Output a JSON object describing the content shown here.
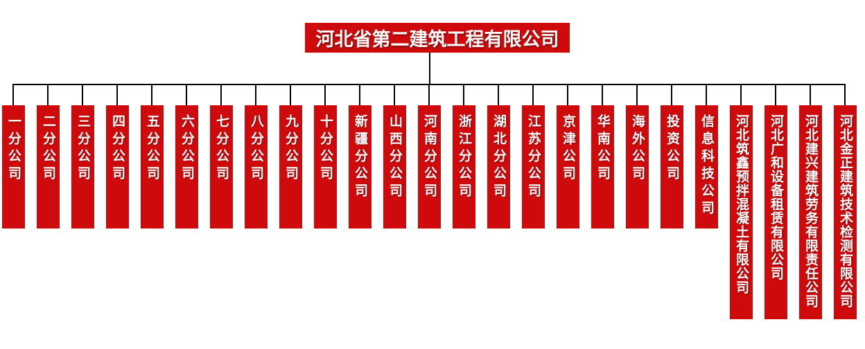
{
  "colors": {
    "box_bg": "#ce0a0c",
    "box_text": "#ffffff",
    "line": "#000000",
    "page_bg": "#ffffff"
  },
  "header": {
    "title": "河北省第二建筑工程有限公司"
  },
  "companies": [
    {
      "name": "一分公司",
      "tall": false
    },
    {
      "name": "二分公司",
      "tall": false
    },
    {
      "name": "三分公司",
      "tall": false
    },
    {
      "name": "四分公司",
      "tall": false
    },
    {
      "name": "五分公司",
      "tall": false
    },
    {
      "name": "六分公司",
      "tall": false
    },
    {
      "name": "七分公司",
      "tall": false
    },
    {
      "name": "八分公司",
      "tall": false
    },
    {
      "name": "九分公司",
      "tall": false
    },
    {
      "name": "十分公司",
      "tall": false
    },
    {
      "name": "新疆分公司",
      "tall": false
    },
    {
      "name": "山西分公司",
      "tall": false
    },
    {
      "name": "河南分公司",
      "tall": false
    },
    {
      "name": "浙江分公司",
      "tall": false
    },
    {
      "name": "湖北分公司",
      "tall": false
    },
    {
      "name": "江苏分公司",
      "tall": false
    },
    {
      "name": "京津公司",
      "tall": false
    },
    {
      "name": "华南公司",
      "tall": false
    },
    {
      "name": "海外公司",
      "tall": false
    },
    {
      "name": "投资公司",
      "tall": false
    },
    {
      "name": "信息科技公司",
      "tall": false
    },
    {
      "name": "河北筑鑫预拌混凝土有限公司",
      "tall": true
    },
    {
      "name": "河北广和设备租赁有限公司",
      "tall": true
    },
    {
      "name": "河北建兴建筑劳务有限责任公司",
      "tall": true
    },
    {
      "name": "河北金正建筑技术检测有限公司",
      "tall": true
    }
  ]
}
